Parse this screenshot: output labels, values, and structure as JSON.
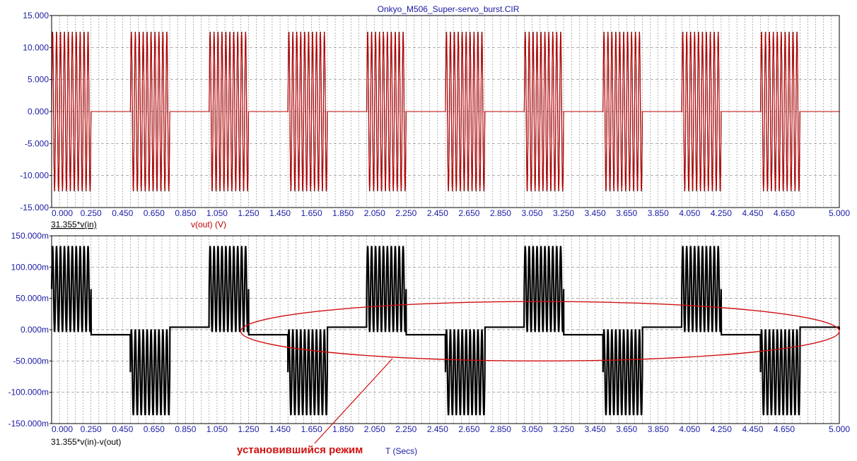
{
  "window": {
    "title": "Onkyo_M506_Super-servo_burst.CIR"
  },
  "colors": {
    "axis_text": "#1a1aa6",
    "grid": "#808080",
    "trace_in": "#000000",
    "trace_out": "#c00000",
    "trace_diff": "#000000",
    "annotation": "#d01010"
  },
  "chart_data": [
    {
      "type": "line",
      "title": "Onkyo_M506_Super-servo_burst.CIR",
      "xlabel": "",
      "ylabel": "",
      "xlim": [
        0.0,
        5.0
      ],
      "ylim": [
        -15.0,
        15.0
      ],
      "grid": true,
      "x_ticks": [
        "0.000",
        "0.250",
        "0.450",
        "0.650",
        "0.850",
        "1.050",
        "1.250",
        "1.450",
        "1.650",
        "1.850",
        "2.050",
        "2.250",
        "2.450",
        "2.650",
        "2.850",
        "3.050",
        "3.250",
        "3.450",
        "3.650",
        "3.850",
        "4.050",
        "4.250",
        "4.450",
        "4.650",
        "5.000"
      ],
      "y_ticks": [
        "15.000",
        "10.000",
        "5.000",
        "0.000",
        "-5.000",
        "-10.000",
        "-15.000"
      ],
      "legend": [
        "31.355*v(in)",
        "v(out) (V)"
      ],
      "series": [
        {
          "name": "31.355*v(in)",
          "color": "#000000",
          "description_shape": "tone burst",
          "amplitude": 12.5,
          "burst_frequency": 40,
          "burst_on": [
            [
              0.0,
              0.25
            ],
            [
              0.5,
              0.75
            ],
            [
              1.0,
              1.25
            ],
            [
              1.5,
              1.75
            ],
            [
              2.0,
              2.25
            ],
            [
              2.5,
              2.75
            ],
            [
              3.0,
              3.25
            ],
            [
              3.5,
              3.75
            ],
            [
              4.0,
              4.25
            ],
            [
              4.5,
              4.75
            ]
          ],
          "x_end": 5.0
        },
        {
          "name": "v(out) (V)",
          "color": "#c00000",
          "description_shape": "tone burst",
          "amplitude": 12.4,
          "burst_frequency": 40,
          "burst_on": [
            [
              0.0,
              0.25
            ],
            [
              0.5,
              0.75
            ],
            [
              1.0,
              1.25
            ],
            [
              1.5,
              1.75
            ],
            [
              2.0,
              2.25
            ],
            [
              2.5,
              2.75
            ],
            [
              3.0,
              3.25
            ],
            [
              3.5,
              3.75
            ],
            [
              4.0,
              4.25
            ],
            [
              4.5,
              4.75
            ]
          ],
          "x_end": 5.0
        }
      ]
    },
    {
      "type": "line",
      "title": "",
      "xlabel": "T (Secs)",
      "ylabel": "",
      "xlim": [
        0.0,
        5.0
      ],
      "ylim": [
        -0.15,
        0.15
      ],
      "grid": true,
      "x_ticks": [
        "0.000",
        "0.250",
        "0.450",
        "0.650",
        "0.850",
        "1.050",
        "1.250",
        "1.450",
        "1.650",
        "1.850",
        "2.050",
        "2.250",
        "2.450",
        "2.650",
        "2.850",
        "3.050",
        "3.250",
        "3.450",
        "3.650",
        "3.850",
        "4.050",
        "4.250",
        "4.450",
        "4.650",
        "5.000"
      ],
      "y_ticks": [
        "150.000m",
        "100.000m",
        "50.000m",
        "0.000m",
        "-50.000m",
        "-100.000m",
        "-150.000m"
      ],
      "legend": [
        "31.355*v(in)-v(out)"
      ],
      "series": [
        {
          "name": "31.355*v(in)-v(out)",
          "color": "#000000",
          "bursts": [
            {
              "t0": 0.0,
              "t1": 0.25,
              "center": 0.065,
              "amplitude": 0.068,
              "gap_level": -0.008
            },
            {
              "t0": 0.5,
              "t1": 0.75,
              "center": -0.068,
              "amplitude": 0.068,
              "gap_level": 0.004
            },
            {
              "t0": 1.0,
              "t1": 1.25,
              "center": 0.065,
              "amplitude": 0.068,
              "gap_level": -0.008
            },
            {
              "t0": 1.5,
              "t1": 1.75,
              "center": -0.068,
              "amplitude": 0.068,
              "gap_level": 0.004
            },
            {
              "t0": 2.0,
              "t1": 2.25,
              "center": 0.065,
              "amplitude": 0.068,
              "gap_level": -0.008
            },
            {
              "t0": 2.5,
              "t1": 2.75,
              "center": -0.068,
              "amplitude": 0.068,
              "gap_level": 0.004
            },
            {
              "t0": 3.0,
              "t1": 3.25,
              "center": 0.065,
              "amplitude": 0.068,
              "gap_level": -0.008
            },
            {
              "t0": 3.5,
              "t1": 3.75,
              "center": -0.068,
              "amplitude": 0.068,
              "gap_level": 0.004
            },
            {
              "t0": 4.0,
              "t1": 4.25,
              "center": 0.065,
              "amplitude": 0.068,
              "gap_level": -0.008
            },
            {
              "t0": 4.5,
              "t1": 4.75,
              "center": -0.068,
              "amplitude": 0.068,
              "gap_level": 0.004
            },
            {
              "t0": 5.0,
              "t1": 5.0,
              "center": 0.065,
              "amplitude": 0.068,
              "gap_level": 0.0
            }
          ],
          "burst_frequency": 40,
          "x_end": 5.0
        }
      ],
      "annotations": [
        {
          "text": "установившийся режим",
          "shape": "ellipse",
          "x_range": [
            1.2,
            5.0
          ],
          "y_range": [
            -0.05,
            0.045
          ]
        }
      ]
    }
  ]
}
